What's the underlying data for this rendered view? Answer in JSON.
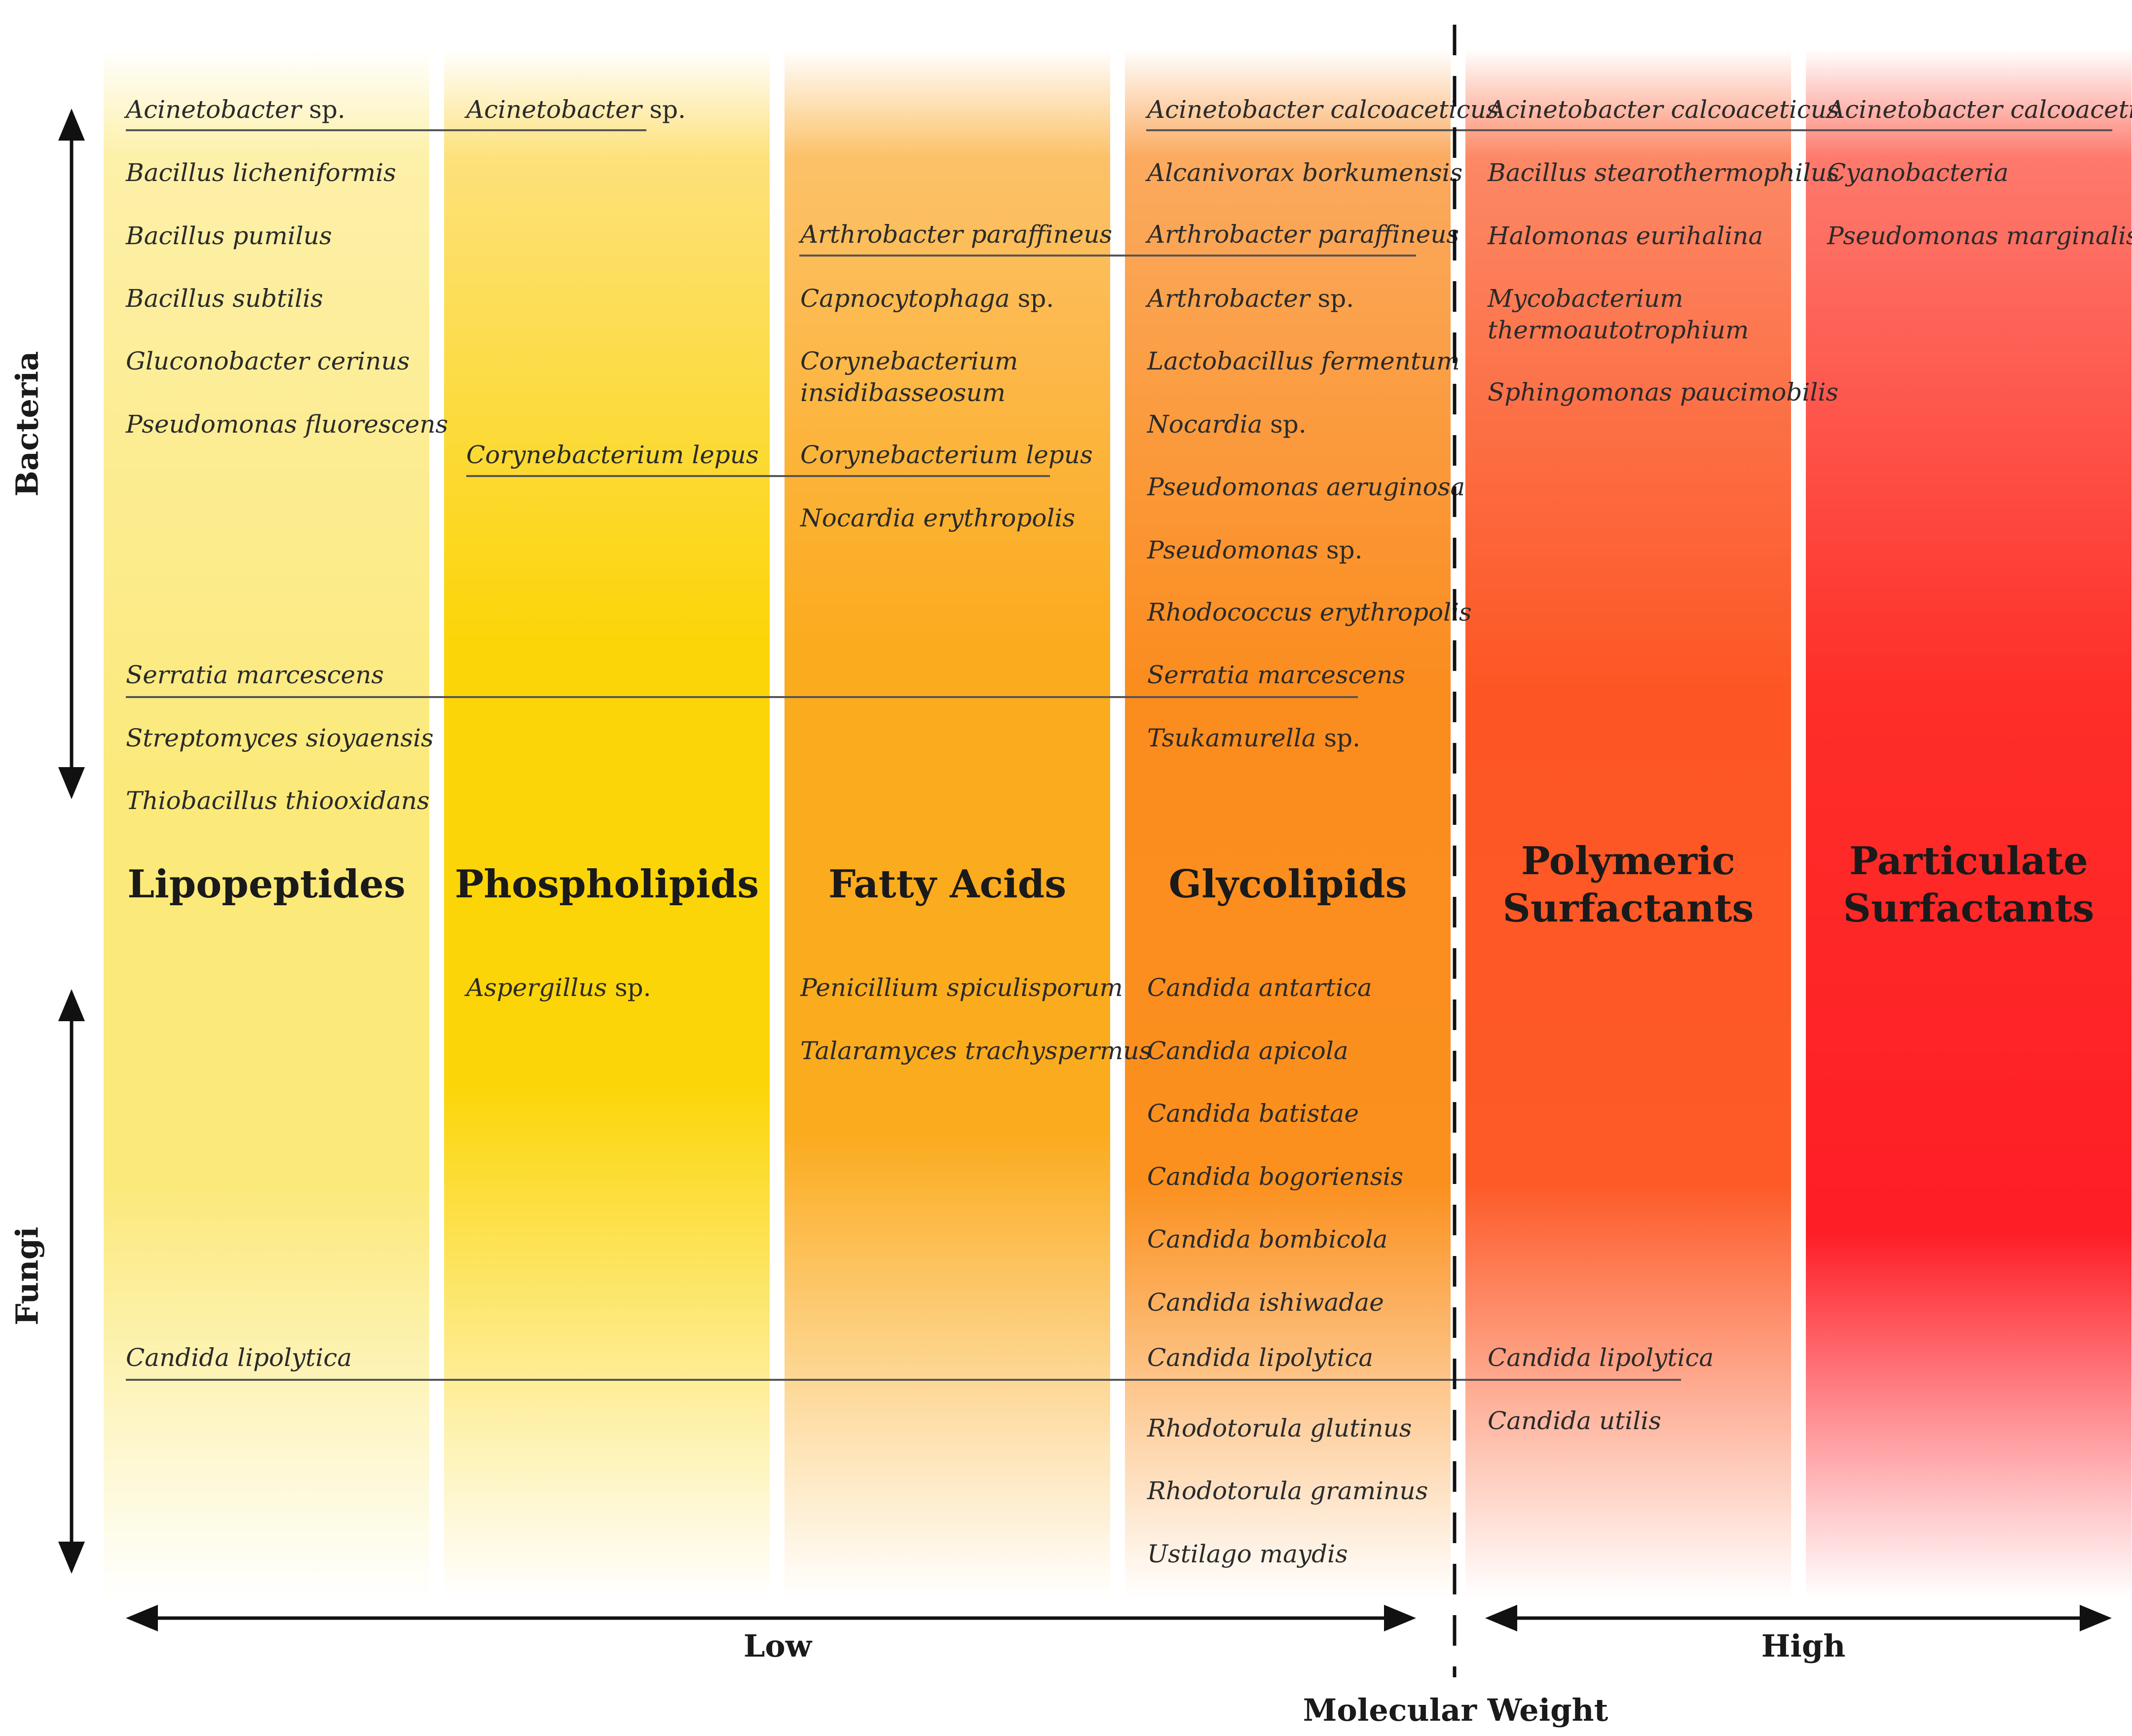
{
  "categories": [
    {
      "title": [
        "Lipopeptides"
      ]
    },
    {
      "title": [
        "Phospholipids"
      ]
    },
    {
      "title": [
        "Fatty Acids"
      ]
    },
    {
      "title": [
        "Glycolipids"
      ]
    },
    {
      "title": [
        "Polymeric",
        "Surfactants"
      ]
    },
    {
      "title": [
        "Particulate",
        "Surfactants"
      ]
    }
  ],
  "species": {
    "c1": [
      {
        "name": "Acinetobacter",
        "suffix": " sp."
      },
      {
        "name": "Bacillus licheniformis",
        "suffix": ""
      },
      {
        "name": "Bacillus pumilus",
        "suffix": ""
      },
      {
        "name": "Bacillus subtilis",
        "suffix": ""
      },
      {
        "name": "Gluconobacter cerinus",
        "suffix": ""
      },
      {
        "name": "Pseudomonas fluorescens",
        "suffix": ""
      },
      {
        "name": "Serratia marcescens",
        "suffix": ""
      },
      {
        "name": "Streptomyces sioyaensis",
        "suffix": ""
      },
      {
        "name": "Thiobacillus thiooxidans",
        "suffix": ""
      },
      {
        "name": "Candida lipolytica",
        "suffix": ""
      }
    ],
    "c2": [
      {
        "name": "Acinetobacter",
        "suffix": " sp."
      },
      {
        "name": "Corynebacterium lepus",
        "suffix": ""
      },
      {
        "name": "Aspergillus",
        "suffix": " sp."
      }
    ],
    "c3": [
      {
        "name": "Arthrobacter paraffineus",
        "suffix": ""
      },
      {
        "name": "Capnocytophaga",
        "suffix": " sp."
      },
      {
        "name": "Corynebacterium\ninsidibasseosum",
        "suffix": ""
      },
      {
        "name": "Corynebacterium lepus",
        "suffix": ""
      },
      {
        "name": "Nocardia erythropolis",
        "suffix": ""
      },
      {
        "name": "Penicillium spiculisporum",
        "suffix": ""
      },
      {
        "name": "Talaramyces trachyspermus",
        "suffix": ""
      }
    ],
    "c4": [
      {
        "name": "Acinetobacter calcoaceticus",
        "suffix": ""
      },
      {
        "name": "Alcanivorax borkumensis",
        "suffix": ""
      },
      {
        "name": "Arthrobacter paraffineus",
        "suffix": ""
      },
      {
        "name": "Arthrobacter",
        "suffix": " sp."
      },
      {
        "name": "Lactobacillus fermentum",
        "suffix": ""
      },
      {
        "name": "Nocardia",
        "suffix": " sp."
      },
      {
        "name": "Pseudomonas aeruginosa",
        "suffix": ""
      },
      {
        "name": "Pseudomonas",
        "suffix": " sp."
      },
      {
        "name": "Rhodococcus erythropolis",
        "suffix": ""
      },
      {
        "name": "Serratia marcescens",
        "suffix": ""
      },
      {
        "name": "Tsukamurella",
        "suffix": " sp."
      },
      {
        "name": "Candida antartica",
        "suffix": ""
      },
      {
        "name": "Candida apicola",
        "suffix": ""
      },
      {
        "name": "Candida batistae",
        "suffix": ""
      },
      {
        "name": "Candida bogoriensis",
        "suffix": ""
      },
      {
        "name": "Candida bombicola",
        "suffix": ""
      },
      {
        "name": "Candida ishiwadae",
        "suffix": ""
      },
      {
        "name": "Candida lipolytica",
        "suffix": ""
      },
      {
        "name": "Rhodotorula glutinus",
        "suffix": ""
      },
      {
        "name": "Rhodotorula graminus",
        "suffix": ""
      },
      {
        "name": "Ustilago maydis",
        "suffix": ""
      }
    ],
    "c5": [
      {
        "name": "Acinetobacter calcoaceticus",
        "suffix": ""
      },
      {
        "name": "Bacillus stearothermophilus",
        "suffix": ""
      },
      {
        "name": "Halomonas eurihalina",
        "suffix": ""
      },
      {
        "name": "Mycobacterium\nthermoautotrophium",
        "suffix": ""
      },
      {
        "name": "Sphingomonas paucimobilis",
        "suffix": ""
      },
      {
        "name": "Candida lipolytica",
        "suffix": ""
      },
      {
        "name": "Candida utilis",
        "suffix": ""
      }
    ],
    "c6": [
      {
        "name": "Acinetobacter calcoaceticus",
        "suffix": ""
      },
      {
        "name": "Cyanobacteria",
        "suffix": ""
      },
      {
        "name": "Pseudomonas marginalis",
        "suffix": ""
      }
    ]
  },
  "axes": {
    "bacteria": "Bacteria",
    "fungi": "Fungi",
    "low": "Low",
    "high": "High",
    "molecular_weight": "Molecular Weight"
  }
}
